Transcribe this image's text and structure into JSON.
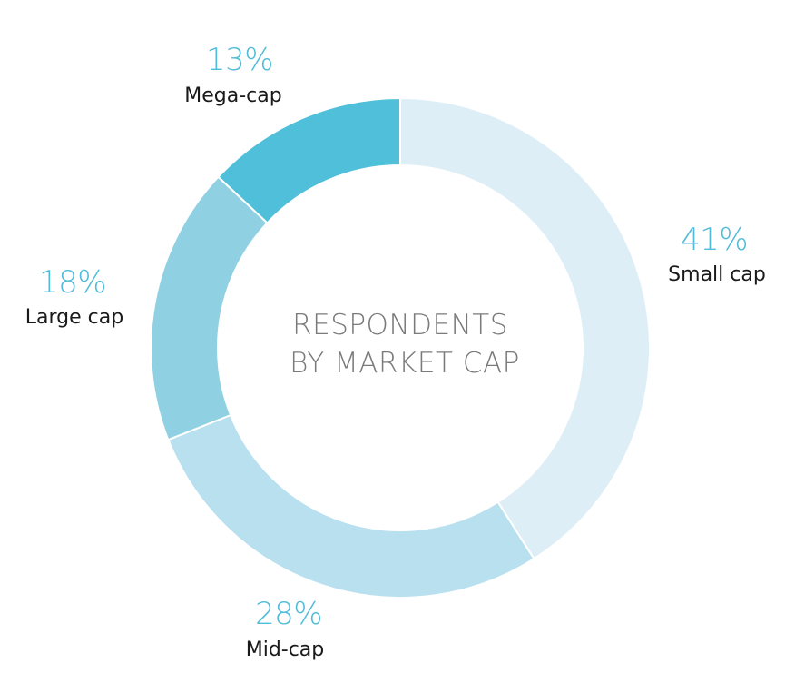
{
  "chart_data": {
    "type": "pie",
    "title_lines": [
      "RESPONDENTS",
      "BY MARKET CAP"
    ],
    "categories": [
      "Small cap",
      "Mid-cap",
      "Large cap",
      "Mega-cap"
    ],
    "values": [
      41,
      28,
      18,
      13
    ],
    "value_labels": [
      "41%",
      "28%",
      "18%",
      "13%"
    ],
    "unit": "%",
    "donut": true,
    "start_angle_deg": 0,
    "direction": "clockwise",
    "colors": [
      "#DDEEF6",
      "#B9E0EF",
      "#8FD1E3",
      "#50C0DA"
    ],
    "label_color": "#50BCD9"
  }
}
